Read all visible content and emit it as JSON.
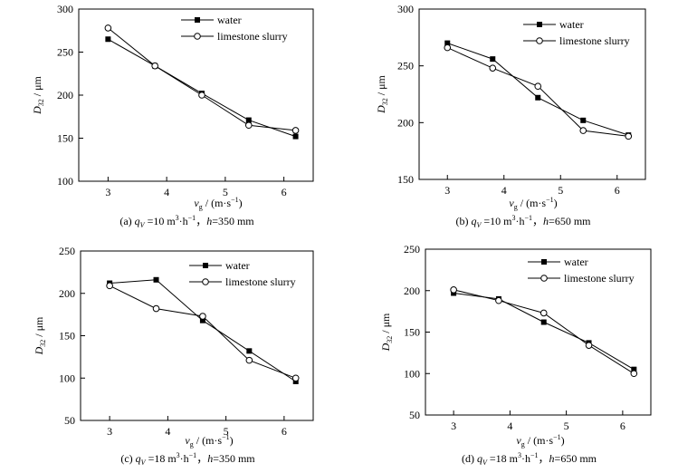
{
  "chart_data": [
    {
      "type": "line",
      "caption": {
        "prefix": "(a) ",
        "q": "q",
        "qsub": "V",
        "mid": " =10 m",
        "sup1": "3",
        "dot": "·h",
        "sup2": "−1",
        "sep": "，",
        "h": "h",
        "tail": "=350 mm"
      },
      "xlabel": {
        "v": "v",
        "vsub": "g",
        "rest": " / (m·s",
        "sup": "−1",
        "close": ")"
      },
      "ylabel": {
        "d": "D",
        "dsub": "32",
        "rest": " / μm"
      },
      "xlim": [
        2.5,
        6.5
      ],
      "ylim": [
        100,
        300
      ],
      "xticks": [
        3,
        4,
        5,
        6
      ],
      "yticks": [
        100,
        150,
        200,
        250,
        300
      ],
      "series": [
        {
          "name": "water",
          "marker": "filled-square",
          "x": [
            3.0,
            3.8,
            4.6,
            5.4,
            6.2
          ],
          "y": [
            265,
            234,
            202,
            171,
            152
          ]
        },
        {
          "name": "limestone slurry",
          "marker": "open-circle",
          "x": [
            3.0,
            3.8,
            4.6,
            5.4,
            6.2
          ],
          "y": [
            278,
            234,
            200,
            165,
            159
          ]
        }
      ]
    },
    {
      "type": "line",
      "caption": {
        "prefix": "(b) ",
        "q": "q",
        "qsub": "V",
        "mid": " =10 m",
        "sup1": "3",
        "dot": "·h",
        "sup2": "−1",
        "sep": "，",
        "h": "h",
        "tail": "=650 mm"
      },
      "xlabel": {
        "v": "v",
        "vsub": "g",
        "rest": " / (m·s",
        "sup": "−1",
        "close": ")"
      },
      "ylabel": {
        "d": "D",
        "dsub": "32",
        "rest": " / μm"
      },
      "xlim": [
        2.5,
        6.5
      ],
      "ylim": [
        150,
        300
      ],
      "xticks": [
        3,
        4,
        5,
        6
      ],
      "yticks": [
        150,
        200,
        250,
        300
      ],
      "series": [
        {
          "name": "water",
          "marker": "filled-square",
          "x": [
            3.0,
            3.8,
            4.6,
            5.4,
            6.2
          ],
          "y": [
            270,
            256,
            222,
            202,
            189
          ]
        },
        {
          "name": "limestone slurry",
          "marker": "open-circle",
          "x": [
            3.0,
            3.8,
            4.6,
            5.4,
            6.2
          ],
          "y": [
            266,
            248,
            232,
            193,
            188
          ]
        }
      ]
    },
    {
      "type": "line",
      "caption": {
        "prefix": "(c) ",
        "q": "q",
        "qsub": "V",
        "mid": " =18 m",
        "sup1": "3",
        "dot": "·h",
        "sup2": "−1",
        "sep": "，",
        "h": "h",
        "tail": "=350 mm"
      },
      "xlabel": {
        "v": "v",
        "vsub": "g",
        "rest": " / (m·s",
        "sup": "−1",
        "close": ")"
      },
      "ylabel": {
        "d": "D",
        "dsub": "32",
        "rest": " / μm"
      },
      "xlim": [
        2.5,
        6.5
      ],
      "ylim": [
        50,
        250
      ],
      "xticks": [
        3,
        4,
        5,
        6
      ],
      "yticks": [
        50,
        100,
        150,
        200,
        250
      ],
      "series": [
        {
          "name": "water",
          "marker": "filled-square",
          "x": [
            3.0,
            3.8,
            4.6,
            5.4,
            6.2
          ],
          "y": [
            212,
            216,
            168,
            132,
            96
          ]
        },
        {
          "name": "limestone slurry",
          "marker": "open-circle",
          "x": [
            3.0,
            3.8,
            4.6,
            5.4,
            6.2
          ],
          "y": [
            209,
            182,
            173,
            121,
            100
          ]
        }
      ]
    },
    {
      "type": "line",
      "caption": {
        "prefix": "(d) ",
        "q": "q",
        "qsub": "V",
        "mid": " =18 m",
        "sup1": "3",
        "dot": "·h",
        "sup2": "−1",
        "sep": "，",
        "h": "h",
        "tail": "=650 mm"
      },
      "xlabel": {
        "v": "v",
        "vsub": "g",
        "rest": " / (m·s",
        "sup": "−1",
        "close": ")"
      },
      "ylabel": {
        "d": "D",
        "dsub": "32",
        "rest": " / μm"
      },
      "xlim": [
        2.5,
        6.5
      ],
      "ylim": [
        50,
        250
      ],
      "xticks": [
        3,
        4,
        5,
        6
      ],
      "yticks": [
        50,
        100,
        150,
        200,
        250
      ],
      "series": [
        {
          "name": "water",
          "marker": "filled-square",
          "x": [
            3.0,
            3.8,
            4.6,
            5.4,
            6.2
          ],
          "y": [
            197,
            190,
            162,
            137,
            105
          ]
        },
        {
          "name": "limestone slurry",
          "marker": "open-circle",
          "x": [
            3.0,
            3.8,
            4.6,
            5.4,
            6.2
          ],
          "y": [
            201,
            188,
            173,
            134,
            100
          ]
        }
      ]
    }
  ]
}
